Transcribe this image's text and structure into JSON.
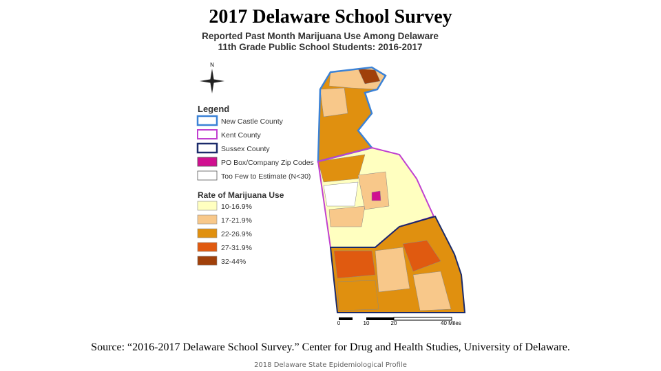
{
  "title": "2017 Delaware School Survey",
  "map": {
    "title_lines": [
      "Reported Past Month Marijuana Use Among Delaware",
      "11th Grade Public School Students: 2016-2017"
    ],
    "north": "N",
    "legend": {
      "title": "Legend",
      "items": [
        "New Castle County",
        "Kent County",
        "Sussex County",
        "PO Box/Company Zip Codes",
        "Too Few to Estimate (N<30)"
      ]
    },
    "rate": {
      "title": "Rate of Marijuana Use",
      "items": [
        "10-16.9%",
        "17-21.9%",
        "22-26.9%",
        "27-31.9%",
        "32-44%"
      ]
    },
    "scale": [
      "0",
      "10",
      "20",
      "40 Miles"
    ]
  },
  "source": "Source: “2016-2017 Delaware School Survey.” Center for Drug and Health Studies, University of Delaware.",
  "footer": "2018 Delaware State Epidemiological Profile"
}
